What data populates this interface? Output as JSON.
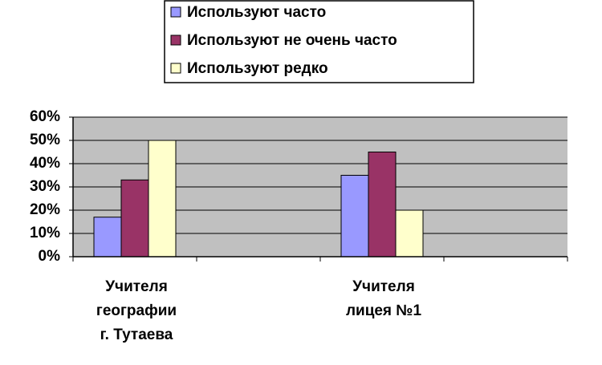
{
  "chart_data": {
    "type": "bar",
    "categories": [
      "Учителя\nгеографии\nг. Тутаева",
      null,
      "Учителя\nлицея №1",
      null
    ],
    "series": [
      {
        "name": "Используют часто",
        "color": "#9999ff",
        "values": [
          17,
          null,
          35,
          null
        ]
      },
      {
        "name": "Используют не очень часто",
        "color": "#993366",
        "values": [
          33,
          null,
          45,
          null
        ]
      },
      {
        "name": "Используют редко",
        "color": "#ffffcc",
        "values": [
          50,
          null,
          20,
          null
        ]
      }
    ],
    "ylim": [
      0,
      60
    ],
    "yticks": [
      {
        "value": 0,
        "label": "0%"
      },
      {
        "value": 10,
        "label": "10%"
      },
      {
        "value": 20,
        "label": "20%"
      },
      {
        "value": 30,
        "label": "30%"
      },
      {
        "value": 40,
        "label": "40%"
      },
      {
        "value": 50,
        "label": "50%"
      },
      {
        "value": 60,
        "label": "60%"
      }
    ],
    "grid": true,
    "legend": "top",
    "plot_background": "#c0c0c0"
  }
}
